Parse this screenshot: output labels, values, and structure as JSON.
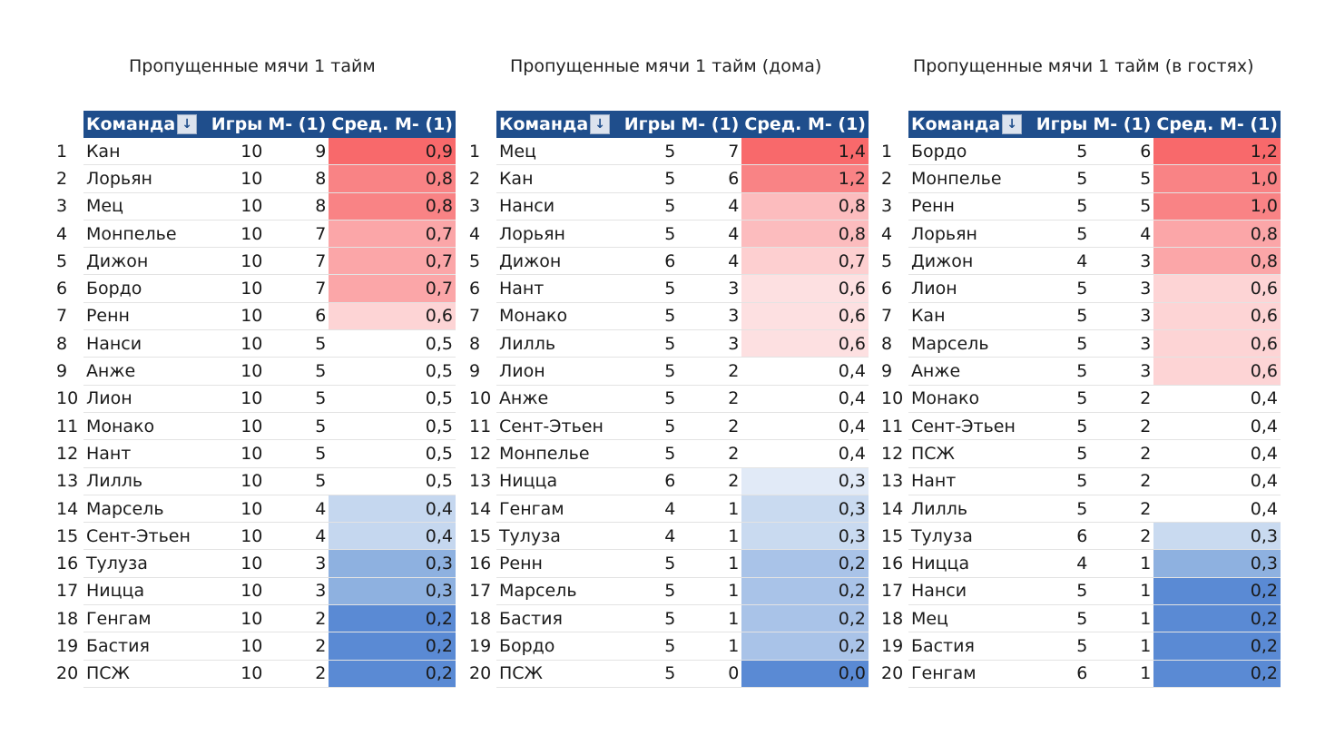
{
  "tables": [
    {
      "title": "Пропущенные мячи 1 тайм",
      "headers": {
        "team": "Команда",
        "games": "Игры",
        "m": "М- (1)",
        "avg": "Сред. М- (1)"
      },
      "rows": [
        {
          "rank": "1",
          "team": "Кан",
          "games": "10",
          "m": "9",
          "avg": "0,9",
          "color": "#f8696b"
        },
        {
          "rank": "2",
          "team": "Лорьян",
          "games": "10",
          "m": "8",
          "avg": "0,8",
          "color": "#f98385"
        },
        {
          "rank": "3",
          "team": "Мец",
          "games": "10",
          "m": "8",
          "avg": "0,8",
          "color": "#f98385"
        },
        {
          "rank": "4",
          "team": "Монпелье",
          "games": "10",
          "m": "7",
          "avg": "0,7",
          "color": "#fba6a8"
        },
        {
          "rank": "5",
          "team": "Дижон",
          "games": "10",
          "m": "7",
          "avg": "0,7",
          "color": "#fba6a8"
        },
        {
          "rank": "6",
          "team": "Бордо",
          "games": "10",
          "m": "7",
          "avg": "0,7",
          "color": "#fba6a8"
        },
        {
          "rank": "7",
          "team": "Ренн",
          "games": "10",
          "m": "6",
          "avg": "0,6",
          "color": "#fdd4d5"
        },
        {
          "rank": "8",
          "team": "Нанси",
          "games": "10",
          "m": "5",
          "avg": "0,5",
          "color": "#ffffff"
        },
        {
          "rank": "9",
          "team": "Анже",
          "games": "10",
          "m": "5",
          "avg": "0,5",
          "color": "#ffffff"
        },
        {
          "rank": "10",
          "team": "Лион",
          "games": "10",
          "m": "5",
          "avg": "0,5",
          "color": "#ffffff"
        },
        {
          "rank": "11",
          "team": "Монако",
          "games": "10",
          "m": "5",
          "avg": "0,5",
          "color": "#ffffff"
        },
        {
          "rank": "12",
          "team": "Нант",
          "games": "10",
          "m": "5",
          "avg": "0,5",
          "color": "#ffffff"
        },
        {
          "rank": "13",
          "team": "Лилль",
          "games": "10",
          "m": "5",
          "avg": "0,5",
          "color": "#ffffff"
        },
        {
          "rank": "14",
          "team": "Марсель",
          "games": "10",
          "m": "4",
          "avg": "0,4",
          "color": "#c5d7ef"
        },
        {
          "rank": "15",
          "team": "Сент-Этьен",
          "games": "10",
          "m": "4",
          "avg": "0,4",
          "color": "#c5d7ef"
        },
        {
          "rank": "16",
          "team": "Тулуза",
          "games": "10",
          "m": "3",
          "avg": "0,3",
          "color": "#8eb1e0"
        },
        {
          "rank": "17",
          "team": "Ницца",
          "games": "10",
          "m": "3",
          "avg": "0,3",
          "color": "#8eb1e0"
        },
        {
          "rank": "18",
          "team": "Генгам",
          "games": "10",
          "m": "2",
          "avg": "0,2",
          "color": "#5a8ad4"
        },
        {
          "rank": "19",
          "team": "Бастия",
          "games": "10",
          "m": "2",
          "avg": "0,2",
          "color": "#5a8ad4"
        },
        {
          "rank": "20",
          "team": "ПСЖ",
          "games": "10",
          "m": "2",
          "avg": "0,2",
          "color": "#5a8ad4"
        }
      ]
    },
    {
      "title": "Пропущенные мячи 1 тайм (дома)",
      "headers": {
        "team": "Команда",
        "games": "Игры",
        "m": "М- (1)",
        "avg": "Сред. М- (1)"
      },
      "rows": [
        {
          "rank": "1",
          "team": "Мец",
          "games": "5",
          "m": "7",
          "avg": "1,4",
          "color": "#f8696b"
        },
        {
          "rank": "2",
          "team": "Кан",
          "games": "5",
          "m": "6",
          "avg": "1,2",
          "color": "#f98385"
        },
        {
          "rank": "3",
          "team": "Нанси",
          "games": "5",
          "m": "4",
          "avg": "0,8",
          "color": "#fcbcbe"
        },
        {
          "rank": "4",
          "team": "Лорьян",
          "games": "5",
          "m": "4",
          "avg": "0,8",
          "color": "#fcbcbe"
        },
        {
          "rank": "5",
          "team": "Дижон",
          "games": "6",
          "m": "4",
          "avg": "0,7",
          "color": "#fdcfd0"
        },
        {
          "rank": "6",
          "team": "Нант",
          "games": "5",
          "m": "3",
          "avg": "0,6",
          "color": "#fde0e1"
        },
        {
          "rank": "7",
          "team": "Монако",
          "games": "5",
          "m": "3",
          "avg": "0,6",
          "color": "#fde0e1"
        },
        {
          "rank": "8",
          "team": "Лилль",
          "games": "5",
          "m": "3",
          "avg": "0,6",
          "color": "#fde0e1"
        },
        {
          "rank": "9",
          "team": "Лион",
          "games": "5",
          "m": "2",
          "avg": "0,4",
          "color": "#ffffff"
        },
        {
          "rank": "10",
          "team": "Анже",
          "games": "5",
          "m": "2",
          "avg": "0,4",
          "color": "#ffffff"
        },
        {
          "rank": "11",
          "team": "Сент-Этьен",
          "games": "5",
          "m": "2",
          "avg": "0,4",
          "color": "#ffffff"
        },
        {
          "rank": "12",
          "team": "Монпелье",
          "games": "5",
          "m": "2",
          "avg": "0,4",
          "color": "#ffffff"
        },
        {
          "rank": "13",
          "team": "Ницца",
          "games": "6",
          "m": "2",
          "avg": "0,3",
          "color": "#e1eaf7"
        },
        {
          "rank": "14",
          "team": "Генгам",
          "games": "4",
          "m": "1",
          "avg": "0,3",
          "color": "#c9daf0"
        },
        {
          "rank": "15",
          "team": "Тулуза",
          "games": "4",
          "m": "1",
          "avg": "0,3",
          "color": "#c9daf0"
        },
        {
          "rank": "16",
          "team": "Ренн",
          "games": "5",
          "m": "1",
          "avg": "0,2",
          "color": "#a9c3e8"
        },
        {
          "rank": "17",
          "team": "Марсель",
          "games": "5",
          "m": "1",
          "avg": "0,2",
          "color": "#a9c3e8"
        },
        {
          "rank": "18",
          "team": "Бастия",
          "games": "5",
          "m": "1",
          "avg": "0,2",
          "color": "#a9c3e8"
        },
        {
          "rank": "19",
          "team": "Бордо",
          "games": "5",
          "m": "1",
          "avg": "0,2",
          "color": "#a9c3e8"
        },
        {
          "rank": "20",
          "team": "ПСЖ",
          "games": "5",
          "m": "0",
          "avg": "0,0",
          "color": "#5a8ad4"
        }
      ]
    },
    {
      "title": "Пропущенные мячи 1 тайм (в гостях)",
      "headers": {
        "team": "Команда",
        "games": "Игры",
        "m": "М- (1)",
        "avg": "Сред. М- (1)"
      },
      "rows": [
        {
          "rank": "1",
          "team": "Бордо",
          "games": "5",
          "m": "6",
          "avg": "1,2",
          "color": "#f8696b"
        },
        {
          "rank": "2",
          "team": "Монпелье",
          "games": "5",
          "m": "5",
          "avg": "1,0",
          "color": "#f98385"
        },
        {
          "rank": "3",
          "team": "Ренн",
          "games": "5",
          "m": "5",
          "avg": "1,0",
          "color": "#f98385"
        },
        {
          "rank": "4",
          "team": "Лорьян",
          "games": "5",
          "m": "4",
          "avg": "0,8",
          "color": "#fba6a8"
        },
        {
          "rank": "5",
          "team": "Дижон",
          "games": "4",
          "m": "3",
          "avg": "0,8",
          "color": "#fba6a8"
        },
        {
          "rank": "6",
          "team": "Лион",
          "games": "5",
          "m": "3",
          "avg": "0,6",
          "color": "#fdd4d5"
        },
        {
          "rank": "7",
          "team": "Кан",
          "games": "5",
          "m": "3",
          "avg": "0,6",
          "color": "#fdd4d5"
        },
        {
          "rank": "8",
          "team": "Марсель",
          "games": "5",
          "m": "3",
          "avg": "0,6",
          "color": "#fdd4d5"
        },
        {
          "rank": "9",
          "team": "Анже",
          "games": "5",
          "m": "3",
          "avg": "0,6",
          "color": "#fdd4d5"
        },
        {
          "rank": "10",
          "team": "Монако",
          "games": "5",
          "m": "2",
          "avg": "0,4",
          "color": "#ffffff"
        },
        {
          "rank": "11",
          "team": "Сент-Этьен",
          "games": "5",
          "m": "2",
          "avg": "0,4",
          "color": "#ffffff"
        },
        {
          "rank": "12",
          "team": "ПСЖ",
          "games": "5",
          "m": "2",
          "avg": "0,4",
          "color": "#ffffff"
        },
        {
          "rank": "13",
          "team": "Нант",
          "games": "5",
          "m": "2",
          "avg": "0,4",
          "color": "#ffffff"
        },
        {
          "rank": "14",
          "team": "Лилль",
          "games": "5",
          "m": "2",
          "avg": "0,4",
          "color": "#ffffff"
        },
        {
          "rank": "15",
          "team": "Тулуза",
          "games": "6",
          "m": "2",
          "avg": "0,3",
          "color": "#c9daf0"
        },
        {
          "rank": "16",
          "team": "Ницца",
          "games": "4",
          "m": "1",
          "avg": "0,3",
          "color": "#8eb1e0"
        },
        {
          "rank": "17",
          "team": "Нанси",
          "games": "5",
          "m": "1",
          "avg": "0,2",
          "color": "#5a8ad4"
        },
        {
          "rank": "18",
          "team": "Мец",
          "games": "5",
          "m": "1",
          "avg": "0,2",
          "color": "#5a8ad4"
        },
        {
          "rank": "19",
          "team": "Бастия",
          "games": "5",
          "m": "1",
          "avg": "0,2",
          "color": "#5a8ad4"
        },
        {
          "rank": "20",
          "team": "Генгам",
          "games": "6",
          "m": "1",
          "avg": "0,2",
          "color": "#5a8ad4"
        }
      ]
    }
  ]
}
